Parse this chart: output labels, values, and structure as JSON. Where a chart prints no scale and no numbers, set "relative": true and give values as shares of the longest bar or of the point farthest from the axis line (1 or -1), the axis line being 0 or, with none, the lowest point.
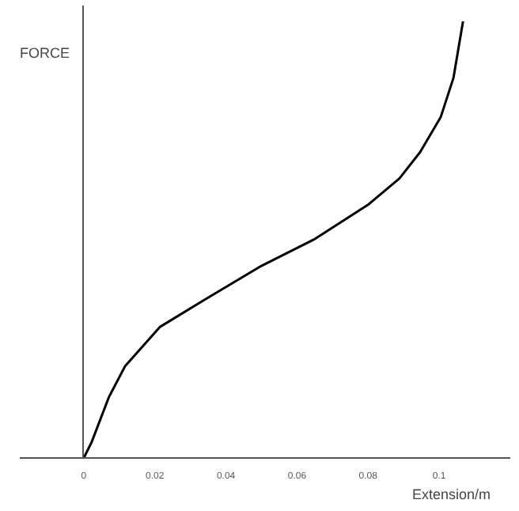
{
  "chart_data": {
    "type": "line",
    "ylabel": "FORCE",
    "xlabel": "Extension/m",
    "relative": true,
    "x": [
      0,
      0.0022,
      0.0071,
      0.0116,
      0.0214,
      0.0335,
      0.05,
      0.0647,
      0.08,
      0.0888,
      0.0946,
      0.1004,
      0.104,
      0.1067
    ],
    "series": [
      {
        "color": "#000000",
        "values": [
          0,
          0.036,
          0.14,
          0.21,
          0.3,
          0.36,
          0.44,
          0.5,
          0.58,
          0.64,
          0.7,
          0.78,
          0.87,
          1
        ]
      }
    ],
    "xlim": [
      -0.018,
      0.12
    ],
    "xticks": [
      0,
      0.02,
      0.04,
      0.06,
      0.08,
      0.1
    ]
  }
}
